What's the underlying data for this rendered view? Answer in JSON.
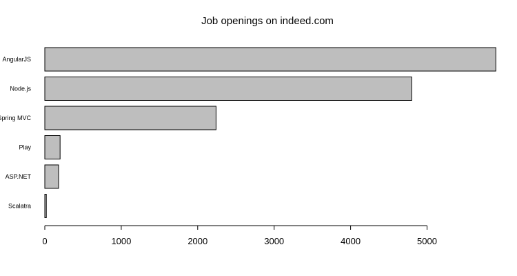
{
  "chart_data": {
    "type": "bar",
    "orientation": "horizontal",
    "title": "Job openings on indeed.com",
    "xlabel": "",
    "ylabel": "",
    "categories": [
      "AngularJS",
      "Node.js",
      "Spring MVC",
      "Play",
      "ASP.NET",
      "Scalatra"
    ],
    "values": [
      5900,
      4800,
      2240,
      200,
      180,
      20
    ],
    "xlim": [
      0,
      5900
    ],
    "xticks": [
      0,
      1000,
      2000,
      3000,
      4000,
      5000
    ],
    "grid": false,
    "bar_color": "#bebebe"
  }
}
